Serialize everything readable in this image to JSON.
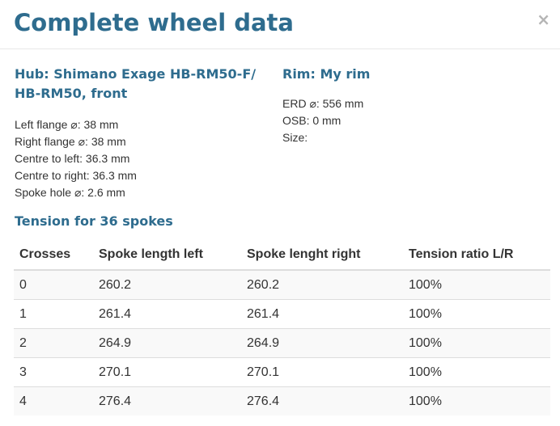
{
  "dialog": {
    "title": "Complete wheel data",
    "close_label": "×"
  },
  "hub": {
    "heading": "Hub: Shimano Exage HB-RM50-F/ HB-RM50, front",
    "specs": [
      "Left flange ⌀: 38 mm",
      "Right flange ⌀: 38 mm",
      "Centre to left: 36.3 mm",
      "Centre to right: 36.3 mm",
      "Spoke hole ⌀: 2.6 mm"
    ]
  },
  "rim": {
    "heading": "Rim: My rim",
    "specs": [
      "ERD ⌀: 556 mm",
      "OSB: 0 mm",
      "Size:"
    ]
  },
  "tension": {
    "heading": "Tension for 36 spokes",
    "columns": [
      "Crosses",
      "Spoke length left",
      "Spoke lenght right",
      "Tension ratio L/R"
    ],
    "rows": [
      [
        "0",
        "260.2",
        "260.2",
        "100%"
      ],
      [
        "1",
        "261.4",
        "261.4",
        "100%"
      ],
      [
        "2",
        "264.9",
        "264.9",
        "100%"
      ],
      [
        "3",
        "270.1",
        "270.1",
        "100%"
      ],
      [
        "4",
        "276.4",
        "276.4",
        "100%"
      ]
    ]
  },
  "colors": {
    "heading": "#2e6c8e",
    "text": "#333333",
    "row_stripe": "#f9f9f9",
    "border": "#dddddd"
  }
}
